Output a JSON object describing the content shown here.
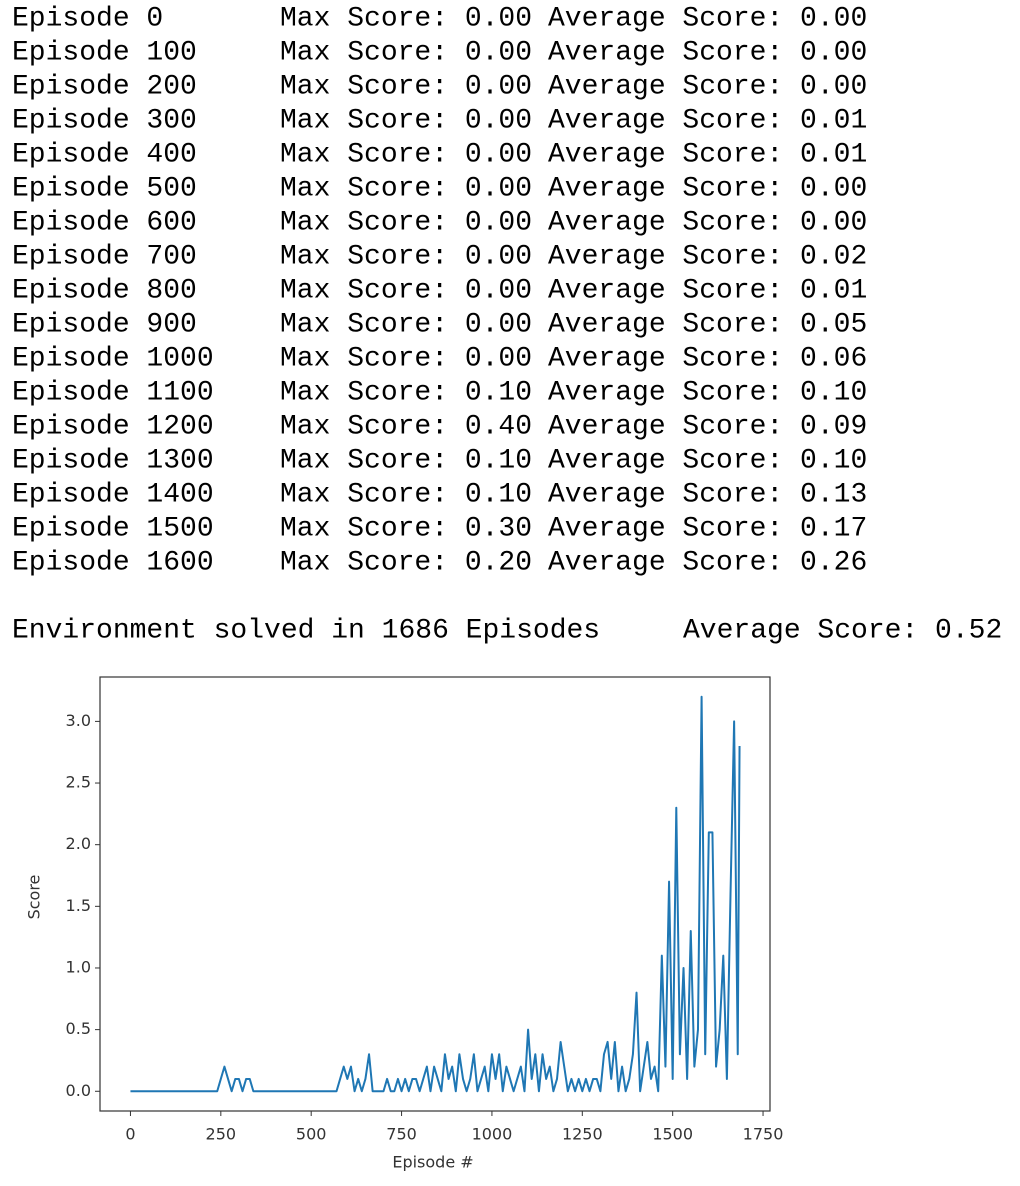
{
  "log": {
    "rows": [
      [
        "Episode 0",
        "Max Score: 0.00",
        "Average Score: 0.00"
      ],
      [
        "Episode 100",
        "Max Score: 0.00",
        "Average Score: 0.00"
      ],
      [
        "Episode 200",
        "Max Score: 0.00",
        "Average Score: 0.00"
      ],
      [
        "Episode 300",
        "Max Score: 0.00",
        "Average Score: 0.01"
      ],
      [
        "Episode 400",
        "Max Score: 0.00",
        "Average Score: 0.01"
      ],
      [
        "Episode 500",
        "Max Score: 0.00",
        "Average Score: 0.00"
      ],
      [
        "Episode 600",
        "Max Score: 0.00",
        "Average Score: 0.00"
      ],
      [
        "Episode 700",
        "Max Score: 0.00",
        "Average Score: 0.02"
      ],
      [
        "Episode 800",
        "Max Score: 0.00",
        "Average Score: 0.01"
      ],
      [
        "Episode 900",
        "Max Score: 0.00",
        "Average Score: 0.05"
      ],
      [
        "Episode 1000",
        "Max Score: 0.00",
        "Average Score: 0.06"
      ],
      [
        "Episode 1100",
        "Max Score: 0.10",
        "Average Score: 0.10"
      ],
      [
        "Episode 1200",
        "Max Score: 0.40",
        "Average Score: 0.09"
      ],
      [
        "Episode 1300",
        "Max Score: 0.10",
        "Average Score: 0.10"
      ],
      [
        "Episode 1400",
        "Max Score: 0.10",
        "Average Score: 0.13"
      ],
      [
        "Episode 1500",
        "Max Score: 0.30",
        "Average Score: 0.17"
      ],
      [
        "Episode 1600",
        "Max Score: 0.20",
        "Average Score: 0.26"
      ]
    ],
    "summary": [
      "Environment solved in 1686 Episodes",
      "Average Score: 0.52"
    ]
  },
  "chart_data": {
    "type": "line",
    "xlabel": "Episode #",
    "ylabel": "Score",
    "color": "#1f77b4",
    "x": [
      0,
      10,
      20,
      30,
      40,
      50,
      60,
      70,
      80,
      90,
      100,
      110,
      120,
      130,
      140,
      150,
      160,
      170,
      180,
      190,
      200,
      210,
      220,
      230,
      240,
      250,
      260,
      270,
      280,
      290,
      300,
      310,
      320,
      330,
      340,
      350,
      360,
      370,
      380,
      390,
      400,
      410,
      420,
      430,
      440,
      450,
      460,
      470,
      480,
      490,
      500,
      510,
      520,
      530,
      540,
      550,
      560,
      570,
      580,
      590,
      600,
      610,
      620,
      630,
      640,
      650,
      660,
      670,
      680,
      690,
      700,
      710,
      720,
      730,
      740,
      750,
      760,
      770,
      780,
      790,
      800,
      810,
      820,
      830,
      840,
      850,
      860,
      870,
      880,
      890,
      900,
      910,
      920,
      930,
      940,
      950,
      960,
      970,
      980,
      990,
      1000,
      1010,
      1020,
      1030,
      1040,
      1050,
      1060,
      1070,
      1080,
      1090,
      1100,
      1110,
      1120,
      1130,
      1140,
      1150,
      1160,
      1170,
      1180,
      1190,
      1200,
      1210,
      1220,
      1230,
      1240,
      1250,
      1260,
      1270,
      1280,
      1290,
      1300,
      1310,
      1320,
      1330,
      1340,
      1350,
      1360,
      1370,
      1380,
      1390,
      1400,
      1410,
      1420,
      1430,
      1440,
      1450,
      1460,
      1470,
      1480,
      1490,
      1500,
      1510,
      1520,
      1530,
      1540,
      1550,
      1560,
      1570,
      1580,
      1590,
      1600,
      1610,
      1620,
      1630,
      1640,
      1650,
      1660,
      1670,
      1680,
      1685
    ],
    "values": [
      0,
      0,
      0,
      0,
      0,
      0,
      0,
      0,
      0,
      0,
      0,
      0,
      0,
      0,
      0,
      0,
      0,
      0,
      0,
      0,
      0,
      0,
      0,
      0,
      0,
      0.1,
      0.2,
      0.1,
      0,
      0.1,
      0.1,
      0,
      0.1,
      0.1,
      0,
      0,
      0,
      0,
      0,
      0,
      0,
      0,
      0,
      0,
      0,
      0,
      0,
      0,
      0,
      0,
      0,
      0,
      0,
      0,
      0,
      0,
      0,
      0,
      0.1,
      0.2,
      0.1,
      0.2,
      0,
      0.1,
      0,
      0.1,
      0.3,
      0,
      0,
      0,
      0,
      0.1,
      0,
      0,
      0.1,
      0,
      0.1,
      0,
      0.1,
      0.1,
      0,
      0.1,
      0.2,
      0,
      0.2,
      0.1,
      0,
      0.3,
      0.1,
      0.2,
      0,
      0.3,
      0.1,
      0,
      0.1,
      0.3,
      0,
      0.1,
      0.2,
      0,
      0.3,
      0.1,
      0.3,
      0,
      0.2,
      0.1,
      0,
      0.1,
      0.2,
      0,
      0.5,
      0.1,
      0.3,
      0,
      0.3,
      0.1,
      0.2,
      0,
      0.1,
      0.4,
      0.2,
      0,
      0.1,
      0,
      0.1,
      0,
      0.1,
      0,
      0.1,
      0.1,
      0,
      0.3,
      0.4,
      0.1,
      0.4,
      0,
      0.2,
      0,
      0.1,
      0.3,
      0.8,
      0,
      0.2,
      0.4,
      0.1,
      0.2,
      0,
      1.1,
      0.2,
      1.7,
      0.1,
      2.3,
      0.3,
      1.0,
      0.1,
      1.3,
      0.2,
      0.5,
      3.2,
      0.3,
      2.1,
      2.1,
      0.2,
      0.5,
      1.1,
      0.1,
      1.6,
      3.0,
      0.3,
      2.8
    ],
    "xlim": [
      -84.25,
      1769.25
    ],
    "ylim": [
      -0.16,
      3.36
    ],
    "xticks": [
      0,
      250,
      500,
      750,
      1000,
      1250,
      1500,
      1750
    ],
    "yticks": [
      {
        "value": 0,
        "label": "0.0"
      },
      {
        "value": 0.5,
        "label": "0.5"
      },
      {
        "value": 1,
        "label": "1.0"
      },
      {
        "value": 1.5,
        "label": "1.5"
      },
      {
        "value": 2,
        "label": "2.0"
      },
      {
        "value": 2.5,
        "label": "2.5"
      },
      {
        "value": 3,
        "label": "3.0"
      }
    ]
  }
}
